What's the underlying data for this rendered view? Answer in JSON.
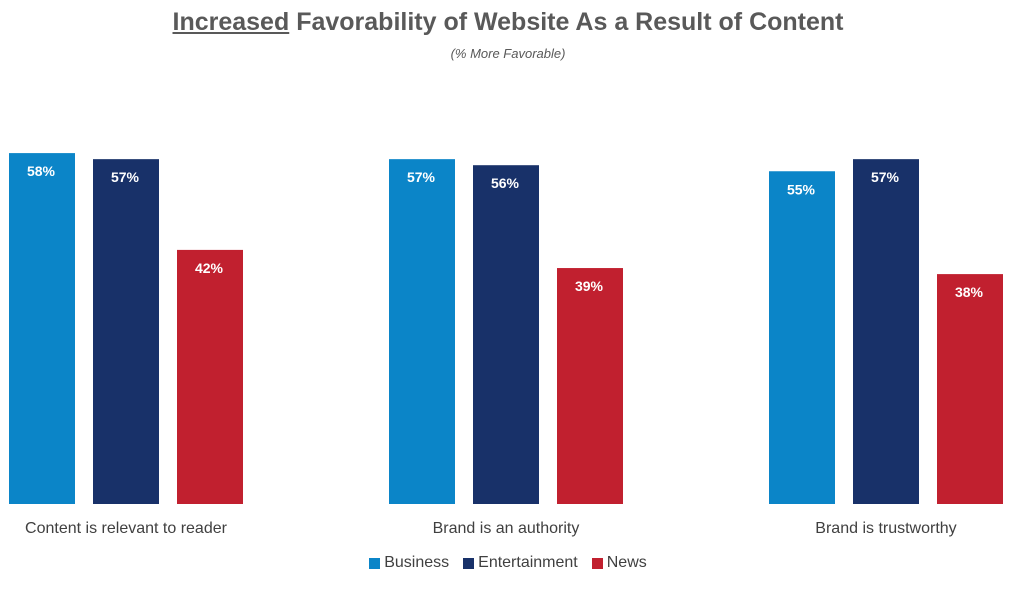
{
  "title": {
    "underlined": "Increased",
    "rest": " Favorability of Website As a Result of Content"
  },
  "subtitle": "(% More Favorable)",
  "chart_data": {
    "type": "bar",
    "title": "Increased Favorability of Website As a Result of Content",
    "subtitle": "(% More Favorable)",
    "categories": [
      "Content is relevant to reader",
      "Brand is an authority",
      "Brand is trustworthy"
    ],
    "series": [
      {
        "name": "Business",
        "color": "#0b85c8",
        "values": [
          58,
          57,
          55
        ],
        "labels": [
          "58%",
          "57%",
          "55%"
        ]
      },
      {
        "name": "Entertainment",
        "color": "#183169",
        "values": [
          57,
          56,
          57
        ],
        "labels": [
          "57%",
          "56%",
          "57%"
        ]
      },
      {
        "name": "News",
        "color": "#c1202f",
        "values": [
          42,
          39,
          38
        ],
        "labels": [
          "42%",
          "39%",
          "38%"
        ]
      }
    ],
    "ylim": [
      0,
      100
    ],
    "xlabel": "",
    "ylabel": "",
    "legend": "bottom",
    "grid": false
  }
}
